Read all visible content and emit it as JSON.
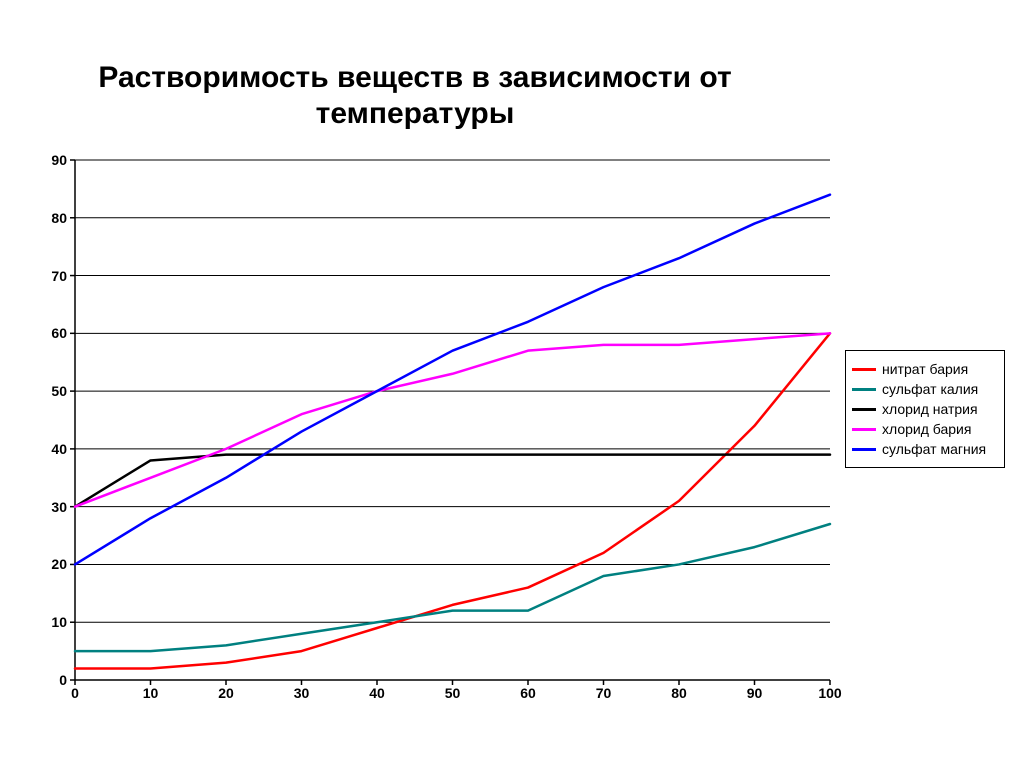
{
  "chart": {
    "type": "line",
    "title": "Растворимость веществ в зависимости от температуры",
    "title_fontsize": 30,
    "title_fontweight": "bold",
    "background_color": "#ffffff",
    "plot_background_color": "#ffffff",
    "x": {
      "min": 0,
      "max": 100,
      "ticks": [
        0,
        10,
        20,
        30,
        40,
        50,
        60,
        70,
        80,
        90,
        100
      ],
      "tick_fontsize": 14,
      "tick_fontweight": "bold",
      "axis_color": "#000000"
    },
    "y": {
      "min": 0,
      "max": 90,
      "ticks": [
        0,
        10,
        20,
        30,
        40,
        50,
        60,
        70,
        80,
        90
      ],
      "tick_fontsize": 14,
      "tick_fontweight": "bold",
      "axis_color": "#000000",
      "grid": true,
      "grid_color": "#000000",
      "grid_width": 1
    },
    "axis_line_width": 1.5,
    "tickmark_length": 5,
    "line_width": 2.5,
    "series": [
      {
        "name": "нитрат бария",
        "color": "#ff0000",
        "x": [
          0,
          10,
          20,
          30,
          40,
          50,
          60,
          70,
          80,
          90,
          100
        ],
        "y": [
          2,
          2,
          3,
          5,
          9,
          13,
          16,
          22,
          31,
          44,
          60
        ]
      },
      {
        "name": "сульфат калия",
        "color": "#008080",
        "x": [
          0,
          10,
          20,
          30,
          40,
          50,
          60,
          70,
          80,
          90,
          100
        ],
        "y": [
          5,
          5,
          6,
          8,
          10,
          12,
          12,
          18,
          20,
          23,
          27
        ]
      },
      {
        "name": "хлорид натрия",
        "color": "#000000",
        "x": [
          0,
          10,
          20,
          30,
          40,
          50,
          60,
          70,
          80,
          90,
          100
        ],
        "y": [
          30,
          38,
          39,
          39,
          39,
          39,
          39,
          39,
          39,
          39,
          39
        ]
      },
      {
        "name": "хлорид бария",
        "color": "#ff00ff",
        "x": [
          0,
          10,
          20,
          30,
          40,
          50,
          60,
          70,
          80,
          90,
          100
        ],
        "y": [
          30,
          35,
          40,
          46,
          50,
          53,
          57,
          58,
          58,
          59,
          60
        ]
      },
      {
        "name": "сульфат магния",
        "color": "#0000ff",
        "x": [
          0,
          10,
          20,
          30,
          40,
          50,
          60,
          70,
          80,
          90,
          100
        ],
        "y": [
          20,
          28,
          35,
          43,
          50,
          57,
          62,
          68,
          73,
          79,
          84
        ]
      }
    ],
    "legend": {
      "position": "right",
      "border_color": "#000000",
      "background_color": "#ffffff",
      "fontsize": 14,
      "swatch_width": 24,
      "swatch_height": 3
    }
  }
}
